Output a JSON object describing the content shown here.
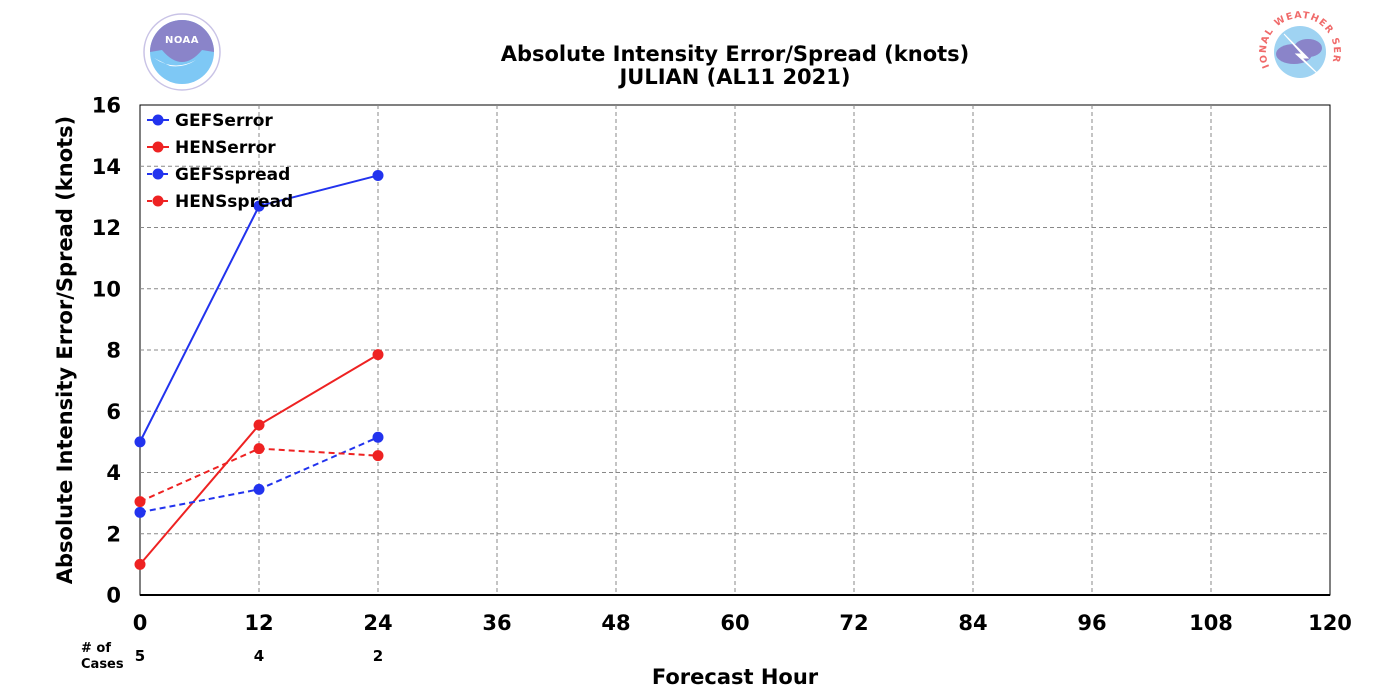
{
  "logos": {
    "left_name": "NOAA",
    "right_name": "NATIONAL WEATHER SERVICE"
  },
  "cases_label": [
    "# of",
    "Cases"
  ],
  "chart_data": {
    "type": "line",
    "title": "Absolute Intensity Error/Spread (knots)",
    "subtitle": "JULIAN (AL11 2021)",
    "xlabel": "Forecast Hour",
    "ylabel": "Absolute Intensity Error/Spread (knots)",
    "xlim": [
      0,
      120
    ],
    "ylim": [
      0,
      16
    ],
    "xticks": [
      0,
      12,
      24,
      36,
      48,
      60,
      72,
      84,
      96,
      108,
      120
    ],
    "yticks": [
      0,
      2,
      4,
      6,
      8,
      10,
      12,
      14,
      16
    ],
    "grid": true,
    "legend_position": "top-left",
    "num_cases": [
      {
        "x": 0,
        "count": 5
      },
      {
        "x": 12,
        "count": 4
      },
      {
        "x": 24,
        "count": 2
      }
    ],
    "series": [
      {
        "name": "GEFSerror",
        "color": "#2233ee",
        "dashed": false,
        "x": [
          0,
          12,
          24
        ],
        "values": [
          5.0,
          12.7,
          13.7
        ]
      },
      {
        "name": "HENSerror",
        "color": "#ee2222",
        "dashed": false,
        "x": [
          0,
          12,
          24
        ],
        "values": [
          1.0,
          5.55,
          7.85
        ]
      },
      {
        "name": "GEFSspread",
        "color": "#2233ee",
        "dashed": true,
        "x": [
          0,
          12,
          24
        ],
        "values": [
          2.7,
          3.45,
          5.15
        ]
      },
      {
        "name": "HENSspread",
        "color": "#ee2222",
        "dashed": true,
        "x": [
          0,
          12,
          24
        ],
        "values": [
          3.05,
          4.78,
          4.55
        ]
      }
    ]
  }
}
